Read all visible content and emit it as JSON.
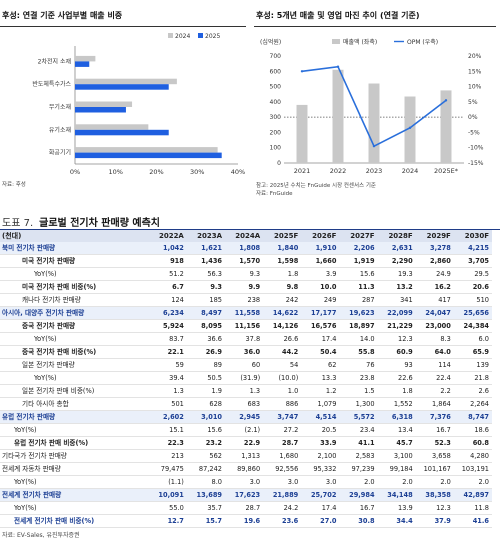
{
  "left_panel": {
    "title": "후성: 연결 기준 사업부별 매출 비중",
    "source": "자료: 후성"
  },
  "right_panel": {
    "title": "후성: 5개년 매출 및 영업 마진 추이 (연결 기준)",
    "source_line1": "참고: 2025년 수치는 FnGuide 시장 컨센서스 기준",
    "source_line2": "자료: FnGuide"
  },
  "chart_data": [
    {
      "type": "bar",
      "orientation": "horizontal",
      "categories": [
        "2차전지 소재",
        "반도체특수가스",
        "무기소재",
        "유기소재",
        "화공기기"
      ],
      "series": [
        {
          "name": "2024",
          "color": "#c8c8c8",
          "values": [
            5.0,
            25.0,
            14.0,
            18.0,
            35.0
          ]
        },
        {
          "name": "2025",
          "color": "#1f5fe0",
          "values": [
            3.5,
            23.0,
            12.5,
            23.0,
            36.0
          ]
        }
      ],
      "x_ticks": [
        "0%",
        "10%",
        "20%",
        "30%",
        "40%"
      ],
      "xlim": [
        0,
        40
      ],
      "legend_position": "top-right"
    },
    {
      "type": "bar+line",
      "unit_label": "(십억원)",
      "categories": [
        "2021",
        "2022",
        "2023",
        "2024",
        "2025E*"
      ],
      "series": [
        {
          "name": "매출액 (좌축)",
          "type": "bar",
          "color": "#c8c8c8",
          "values": [
            380,
            610,
            520,
            435,
            475
          ]
        },
        {
          "name": "OPM (우축)",
          "type": "line",
          "color": "#2a6fdb",
          "values": [
            15,
            16.5,
            -9.5,
            -3.5,
            5.5
          ]
        }
      ],
      "y_left_ticks": [
        "0",
        "100",
        "200",
        "300",
        "400",
        "500",
        "600",
        "700"
      ],
      "y_left_lim": [
        0,
        700
      ],
      "y_right_ticks": [
        "20%",
        "15%",
        "10%",
        "5%",
        "0%",
        "-5%",
        "-10%",
        "-15%"
      ],
      "y_right_lim": [
        -15,
        20
      ],
      "zero_reference": "dotted at 0%",
      "legend_position": "top"
    }
  ],
  "table": {
    "figure_label": "도표 7.",
    "title": "글로벌 전기차 판매량 예측치",
    "unit": "(천대)",
    "columns": [
      "2022A",
      "2023A",
      "2024A",
      "2025F",
      "2026F",
      "2027F",
      "2028F",
      "2029F",
      "2030F"
    ],
    "rows": [
      {
        "label": "북미 전기차 판매량",
        "level": 0,
        "style": "blue band",
        "values": [
          "1,042",
          "1,621",
          "1,808",
          "1,840",
          "1,910",
          "2,206",
          "2,631",
          "3,278",
          "4,215"
        ]
      },
      {
        "label": "미국 전기차 판매량",
        "level": 2,
        "style": "bold",
        "values": [
          "918",
          "1,436",
          "1,570",
          "1,598",
          "1,660",
          "1,919",
          "2,290",
          "2,860",
          "3,705"
        ]
      },
      {
        "label": "YoY(%)",
        "level": 3,
        "style": "",
        "values": [
          "51.2",
          "56.3",
          "9.3",
          "1.8",
          "3.9",
          "15.6",
          "19.3",
          "24.9",
          "29.5"
        ]
      },
      {
        "label": "미국 전기차 판매 비중(%)",
        "level": 2,
        "style": "bold",
        "values": [
          "6.7",
          "9.3",
          "9.9",
          "9.8",
          "10.0",
          "11.3",
          "13.2",
          "16.2",
          "20.6"
        ]
      },
      {
        "label": "캐나다 전기차 판매량",
        "level": 2,
        "style": "",
        "values": [
          "124",
          "185",
          "238",
          "242",
          "249",
          "287",
          "341",
          "417",
          "510"
        ]
      },
      {
        "label": "아시아, 대양주 전기차 판매량",
        "level": 0,
        "style": "blue band",
        "values": [
          "6,234",
          "8,497",
          "11,558",
          "14,622",
          "17,177",
          "19,623",
          "22,099",
          "24,047",
          "25,656"
        ]
      },
      {
        "label": "중국 전기차 판매량",
        "level": 2,
        "style": "bold",
        "values": [
          "5,924",
          "8,095",
          "11,156",
          "14,126",
          "16,576",
          "18,897",
          "21,229",
          "23,000",
          "24,384"
        ]
      },
      {
        "label": "YoY(%)",
        "level": 3,
        "style": "",
        "values": [
          "83.7",
          "36.6",
          "37.8",
          "26.6",
          "17.4",
          "14.0",
          "12.3",
          "8.3",
          "6.0"
        ]
      },
      {
        "label": "중국 전기차 판매 비중(%)",
        "level": 2,
        "style": "bold",
        "values": [
          "22.1",
          "26.9",
          "36.0",
          "44.2",
          "50.4",
          "55.8",
          "60.9",
          "64.0",
          "65.9"
        ]
      },
      {
        "label": "일본 전기차 판매량",
        "level": 2,
        "style": "",
        "values": [
          "59",
          "89",
          "60",
          "54",
          "62",
          "76",
          "93",
          "114",
          "139"
        ]
      },
      {
        "label": "YoY(%)",
        "level": 3,
        "style": "",
        "values": [
          "39.4",
          "50.5",
          "(31.9)",
          "(10.0)",
          "13.3",
          "23.8",
          "22.6",
          "22.4",
          "21.8"
        ]
      },
      {
        "label": "일본 전기차 판매 비중(%)",
        "level": 2,
        "style": "",
        "values": [
          "1.3",
          "1.9",
          "1.3",
          "1.0",
          "1.2",
          "1.5",
          "1.8",
          "2.2",
          "2.6"
        ]
      },
      {
        "label": "기타 아시아 총합",
        "level": 2,
        "style": "",
        "values": [
          "501",
          "628",
          "683",
          "886",
          "1,079",
          "1,300",
          "1,552",
          "1,864",
          "2,264"
        ]
      },
      {
        "label": "유럽 전기차 판매량",
        "level": 0,
        "style": "blue band",
        "values": [
          "2,602",
          "3,010",
          "2,945",
          "3,747",
          "4,514",
          "5,572",
          "6,318",
          "7,376",
          "8,747"
        ]
      },
      {
        "label": "YoY(%)",
        "level": 1,
        "style": "",
        "values": [
          "15.1",
          "15.6",
          "(2.1)",
          "27.2",
          "20.5",
          "23.4",
          "13.4",
          "16.7",
          "18.6"
        ]
      },
      {
        "label": "유럽 전기차 판매 비중(%)",
        "level": 1,
        "style": "bold",
        "values": [
          "22.3",
          "23.2",
          "22.9",
          "28.7",
          "33.9",
          "41.1",
          "45.7",
          "52.3",
          "60.8"
        ]
      },
      {
        "label": "기타국가 전기차 판매량",
        "level": 0,
        "style": "",
        "values": [
          "213",
          "562",
          "1,313",
          "1,680",
          "2,100",
          "2,583",
          "3,100",
          "3,658",
          "4,280"
        ]
      },
      {
        "label": "전세계 자동차 판매량",
        "level": 0,
        "style": "",
        "values": [
          "79,475",
          "87,242",
          "89,860",
          "92,556",
          "95,332",
          "97,239",
          "99,184",
          "101,167",
          "103,191"
        ]
      },
      {
        "label": "YoY(%)",
        "level": 1,
        "style": "",
        "values": [
          "(1.1)",
          "8.0",
          "3.0",
          "3.0",
          "3.0",
          "2.0",
          "2.0",
          "2.0",
          "2.0"
        ]
      },
      {
        "label": "전세계 전기차 판매량",
        "level": 0,
        "style": "blue band",
        "values": [
          "10,091",
          "13,689",
          "17,623",
          "21,889",
          "25,702",
          "29,984",
          "34,148",
          "38,358",
          "42,897"
        ]
      },
      {
        "label": "YoY(%)",
        "level": 1,
        "style": "",
        "values": [
          "55.0",
          "35.7",
          "28.7",
          "24.2",
          "17.4",
          "16.7",
          "13.9",
          "12.3",
          "11.8"
        ]
      },
      {
        "label": "전세계 전기차 판매 비중(%)",
        "level": 1,
        "style": "blue",
        "values": [
          "12.7",
          "15.7",
          "19.6",
          "23.6",
          "27.0",
          "30.8",
          "34.4",
          "37.9",
          "41.6"
        ]
      }
    ],
    "source": "자료: EV-Sales, 유진투자증권"
  }
}
